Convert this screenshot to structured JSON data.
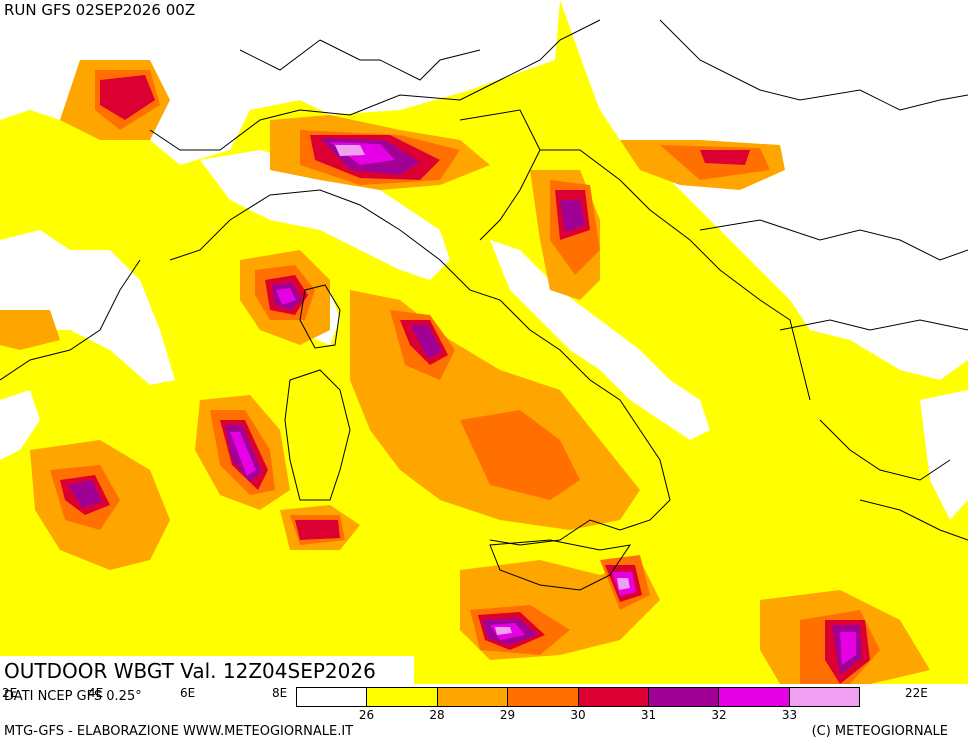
{
  "header": {
    "run_label": "RUN GFS 02SEP2026 00Z"
  },
  "title": {
    "main": "OUTDOOR WBGT Val. 12Z04SEP2026",
    "source": "DATI NCEP GFS 0.25°"
  },
  "footer": {
    "left": "MTG-GFS - ELABORAZIONE WWW.METEOGIORNALE.IT",
    "right": "(C) METEOGIORNALE"
  },
  "axis": {
    "lon_labels": [
      "2E",
      "4E",
      "6E",
      "8E",
      "22E"
    ]
  },
  "legend": {
    "colors": [
      "#ffffff",
      "#ffff00",
      "#ffa500",
      "#ff7000",
      "#dc0032",
      "#a00096",
      "#e600e6",
      "#f0a0f0"
    ],
    "tick_labels": [
      "26",
      "28",
      "29",
      "30",
      "31",
      "32",
      "33"
    ]
  },
  "colors": {
    "ocean_base": "#ffff00",
    "land_base": "#ffffff",
    "border": "#000000"
  }
}
